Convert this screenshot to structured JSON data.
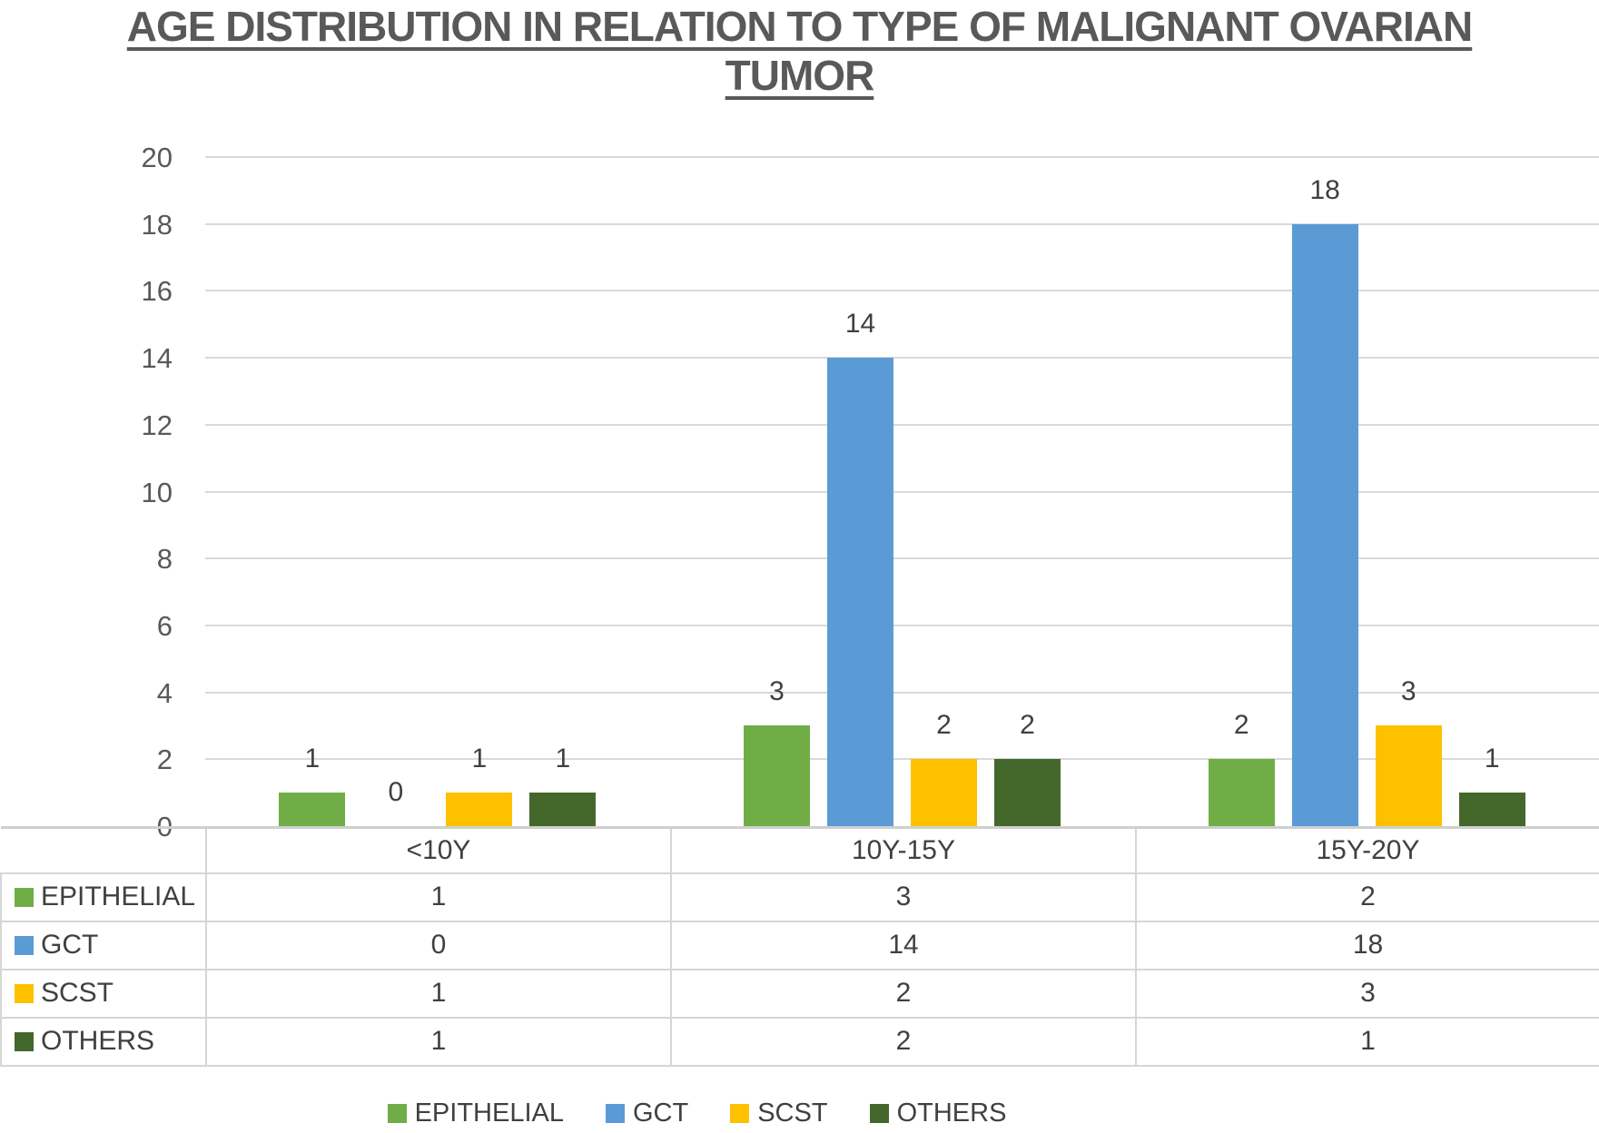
{
  "title": "AGE DISTRIBUTION IN RELATION TO TYPE OF MALIGNANT OVARIAN TUMOR",
  "chart_data": {
    "type": "bar",
    "title": "AGE DISTRIBUTION IN RELATION TO TYPE OF MALIGNANT OVARIAN TUMOR",
    "categories": [
      "<10Y",
      "10Y-15Y",
      "15Y-20Y"
    ],
    "series": [
      {
        "name": "EPITHELIAL",
        "color": "#70AD47",
        "values": [
          1,
          3,
          2
        ]
      },
      {
        "name": "GCT",
        "color": "#5B9BD5",
        "values": [
          0,
          14,
          18
        ]
      },
      {
        "name": "SCST",
        "color": "#FFC000",
        "values": [
          1,
          2,
          3
        ]
      },
      {
        "name": "OTHERS",
        "color": "#44682C",
        "values": [
          1,
          2,
          1
        ]
      }
    ],
    "ylim": [
      0,
      20
    ],
    "yticks": [
      0,
      2,
      4,
      6,
      8,
      10,
      12,
      14,
      16,
      18,
      20
    ],
    "grid": true,
    "show_value_labels": true,
    "data_table": true,
    "legend_position": "bottom",
    "gridline_color": "#D9D9D9",
    "text_color": "#404040",
    "axis_text_color": "#595959"
  }
}
